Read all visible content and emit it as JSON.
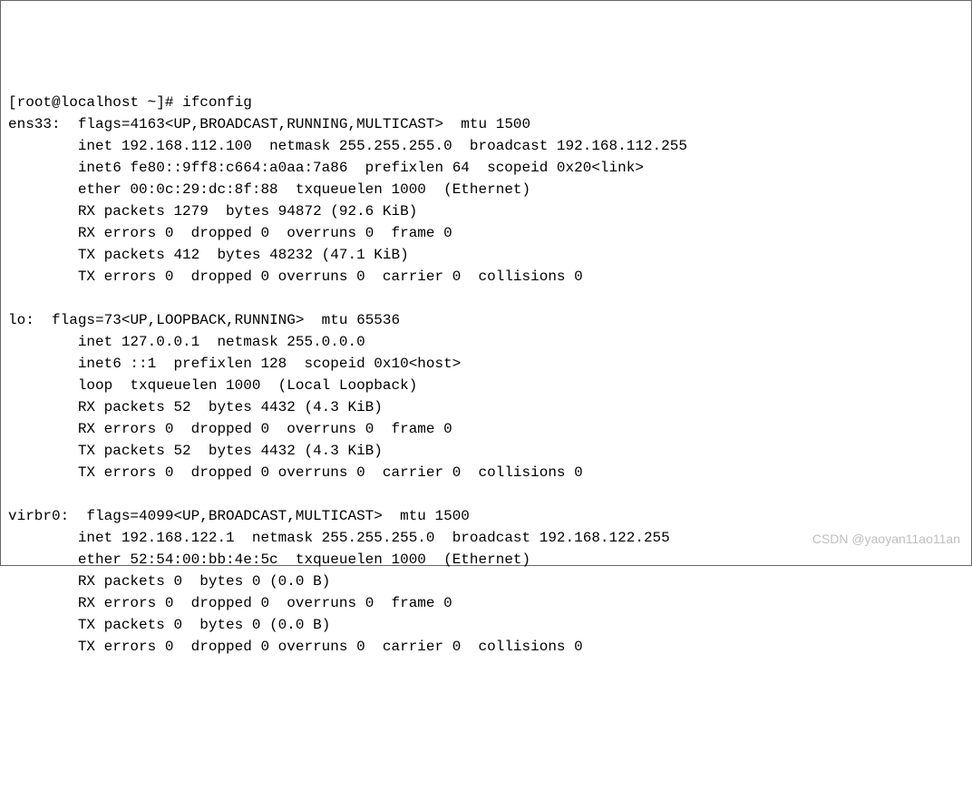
{
  "prompt": {
    "user": "root",
    "host": "localhost",
    "cwd": "~",
    "symbol": "#",
    "command": "ifconfig"
  },
  "interfaces": {
    "ens33": {
      "name": "ens33",
      "flags_num": "4163",
      "flags_list": "UP,BROADCAST,RUNNING,MULTICAST",
      "mtu": "1500",
      "inet": "192.168.112.100",
      "netmask": "255.255.255.0",
      "broadcast": "192.168.112.255",
      "inet6": "fe80::9ff8:c664:a0aa:7a86",
      "prefixlen": "64",
      "scopeid": "0x20<link>",
      "ether": "00:0c:29:dc:8f:88",
      "txqueuelen": "1000",
      "link_type": "Ethernet",
      "rx_packets": "1279",
      "rx_bytes": "94872",
      "rx_bytes_human": "92.6 KiB",
      "rx_errors": "0",
      "rx_dropped": "0",
      "rx_overruns": "0",
      "rx_frame": "0",
      "tx_packets": "412",
      "tx_bytes": "48232",
      "tx_bytes_human": "47.1 KiB",
      "tx_errors": "0",
      "tx_dropped": "0",
      "tx_overruns": "0",
      "tx_carrier": "0",
      "tx_collisions": "0"
    },
    "lo": {
      "name": "lo",
      "flags_num": "73",
      "flags_list": "UP,LOOPBACK,RUNNING",
      "mtu": "65536",
      "inet": "127.0.0.1",
      "netmask": "255.0.0.0",
      "inet6": "::1",
      "prefixlen": "128",
      "scopeid": "0x10<host>",
      "loop": "loop",
      "txqueuelen": "1000",
      "link_type": "Local Loopback",
      "rx_packets": "52",
      "rx_bytes": "4432",
      "rx_bytes_human": "4.3 KiB",
      "rx_errors": "0",
      "rx_dropped": "0",
      "rx_overruns": "0",
      "rx_frame": "0",
      "tx_packets": "52",
      "tx_bytes": "4432",
      "tx_bytes_human": "4.3 KiB",
      "tx_errors": "0",
      "tx_dropped": "0",
      "tx_overruns": "0",
      "tx_carrier": "0",
      "tx_collisions": "0"
    },
    "virbr0": {
      "name": "virbr0",
      "flags_num": "4099",
      "flags_list": "UP,BROADCAST,MULTICAST",
      "mtu": "1500",
      "inet": "192.168.122.1",
      "netmask": "255.255.255.0",
      "broadcast": "192.168.122.255",
      "ether": "52:54:00:bb:4e:5c",
      "txqueuelen": "1000",
      "link_type": "Ethernet",
      "rx_packets": "0",
      "rx_bytes": "0",
      "rx_bytes_human": "0.0 B",
      "rx_errors": "0",
      "rx_dropped": "0",
      "rx_overruns": "0",
      "rx_frame": "0",
      "tx_packets": "0",
      "tx_bytes": "0",
      "tx_bytes_human": "0.0 B",
      "tx_errors": "0",
      "tx_dropped": "0",
      "tx_overruns": "0",
      "tx_carrier": "0",
      "tx_collisions": "0"
    }
  },
  "watermark": "CSDN @yaoyan11ao11an"
}
